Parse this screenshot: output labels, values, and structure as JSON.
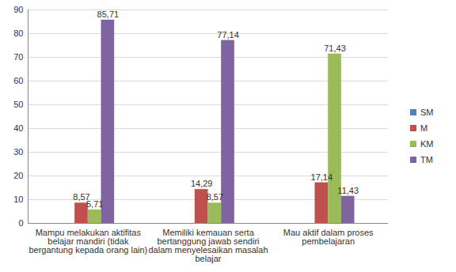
{
  "chart_data": {
    "type": "bar",
    "categories": [
      "Mampu melakukan aktifitas belajar mandiri (tidak bergantung kepada orang lain)",
      "Memiliki kemauan serta bertanggung jawab sendiri dalam menyelesaikan masalah belajar",
      "Mau aktif dalam proses pembelajaran"
    ],
    "series": [
      {
        "name": "SM",
        "color": "#4f81bd",
        "values": [
          null,
          null,
          null
        ]
      },
      {
        "name": "M",
        "color": "#c0504d",
        "values": [
          8.57,
          14.29,
          17.14
        ],
        "value_labels": [
          "8,57",
          "14,29",
          "17,14"
        ]
      },
      {
        "name": "KM",
        "color": "#9bbb59",
        "values": [
          5.71,
          8.57,
          71.43
        ],
        "value_labels": [
          "5,71",
          "8,57",
          "71,43"
        ]
      },
      {
        "name": "TM",
        "color": "#8064a2",
        "values": [
          85.71,
          77.14,
          11.43
        ],
        "value_labels": [
          "85,71",
          "77,14",
          "11,43"
        ]
      }
    ],
    "ylim": [
      0,
      90
    ],
    "yticks": [
      0,
      10,
      20,
      30,
      40,
      50,
      60,
      70,
      80,
      90
    ],
    "grid": true,
    "legend": "right",
    "data_labels": true
  }
}
